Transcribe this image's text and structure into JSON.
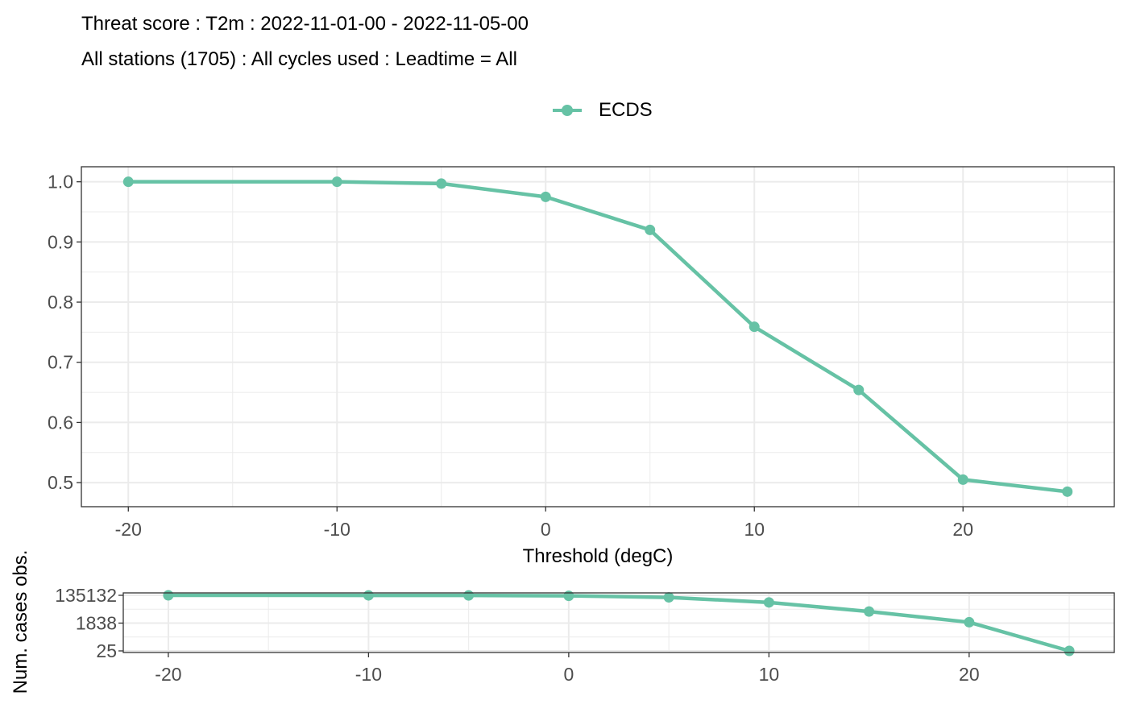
{
  "header": {
    "title": "Threat score : T2m : 2022-11-01-00 - 2022-11-05-00",
    "subtitle": "All stations (1705) : All cycles used : Leadtime = All"
  },
  "legend": {
    "label": "ECDS",
    "position": "top"
  },
  "colors": {
    "series": "#66C2A5",
    "grid": "#EBEBEB",
    "panel_border": "#333333",
    "tick_text": "#4D4D4D"
  },
  "chart_data": [
    {
      "type": "line",
      "series": [
        {
          "name": "ECDS",
          "x": [
            -20,
            -10,
            -5,
            0,
            5,
            10,
            15,
            20,
            25
          ],
          "values": [
            1.0,
            1.0,
            0.997,
            0.975,
            0.92,
            0.759,
            0.654,
            0.505,
            0.485
          ]
        }
      ],
      "xlabel": "Threshold (degC)",
      "ylabel": "",
      "xlim": [
        -22.25,
        27.25
      ],
      "ylim": [
        0.46,
        1.025
      ],
      "xticks": [
        -20,
        -10,
        0,
        10,
        20
      ],
      "xtick_labels": [
        "-20",
        "-10",
        "0",
        "10",
        "20"
      ],
      "yticks": [
        0.5,
        0.6,
        0.7,
        0.8,
        0.9,
        1.0
      ],
      "ytick_labels": [
        "0.5",
        "0.6",
        "0.7",
        "0.8",
        "0.9",
        "1.0"
      ],
      "grid": true
    },
    {
      "type": "line",
      "series": [
        {
          "name": "ECDS",
          "x": [
            -20,
            -10,
            -5,
            0,
            5,
            10,
            15,
            20,
            25
          ],
          "values": [
            135132,
            134000,
            133000,
            125000,
            98000,
            45000,
            11000,
            2100,
            25
          ]
        }
      ],
      "xlabel": "",
      "ylabel": "Num. cases obs.",
      "yscale": "log",
      "xlim": [
        -22.25,
        27.25
      ],
      "xticks": [
        -20,
        -10,
        0,
        10,
        20
      ],
      "xtick_labels": [
        "-20",
        "-10",
        "0",
        "10",
        "20"
      ],
      "yticks": [
        25,
        1838,
        135132
      ],
      "ytick_labels": [
        "25",
        "1838",
        "135132"
      ],
      "grid": true
    }
  ]
}
